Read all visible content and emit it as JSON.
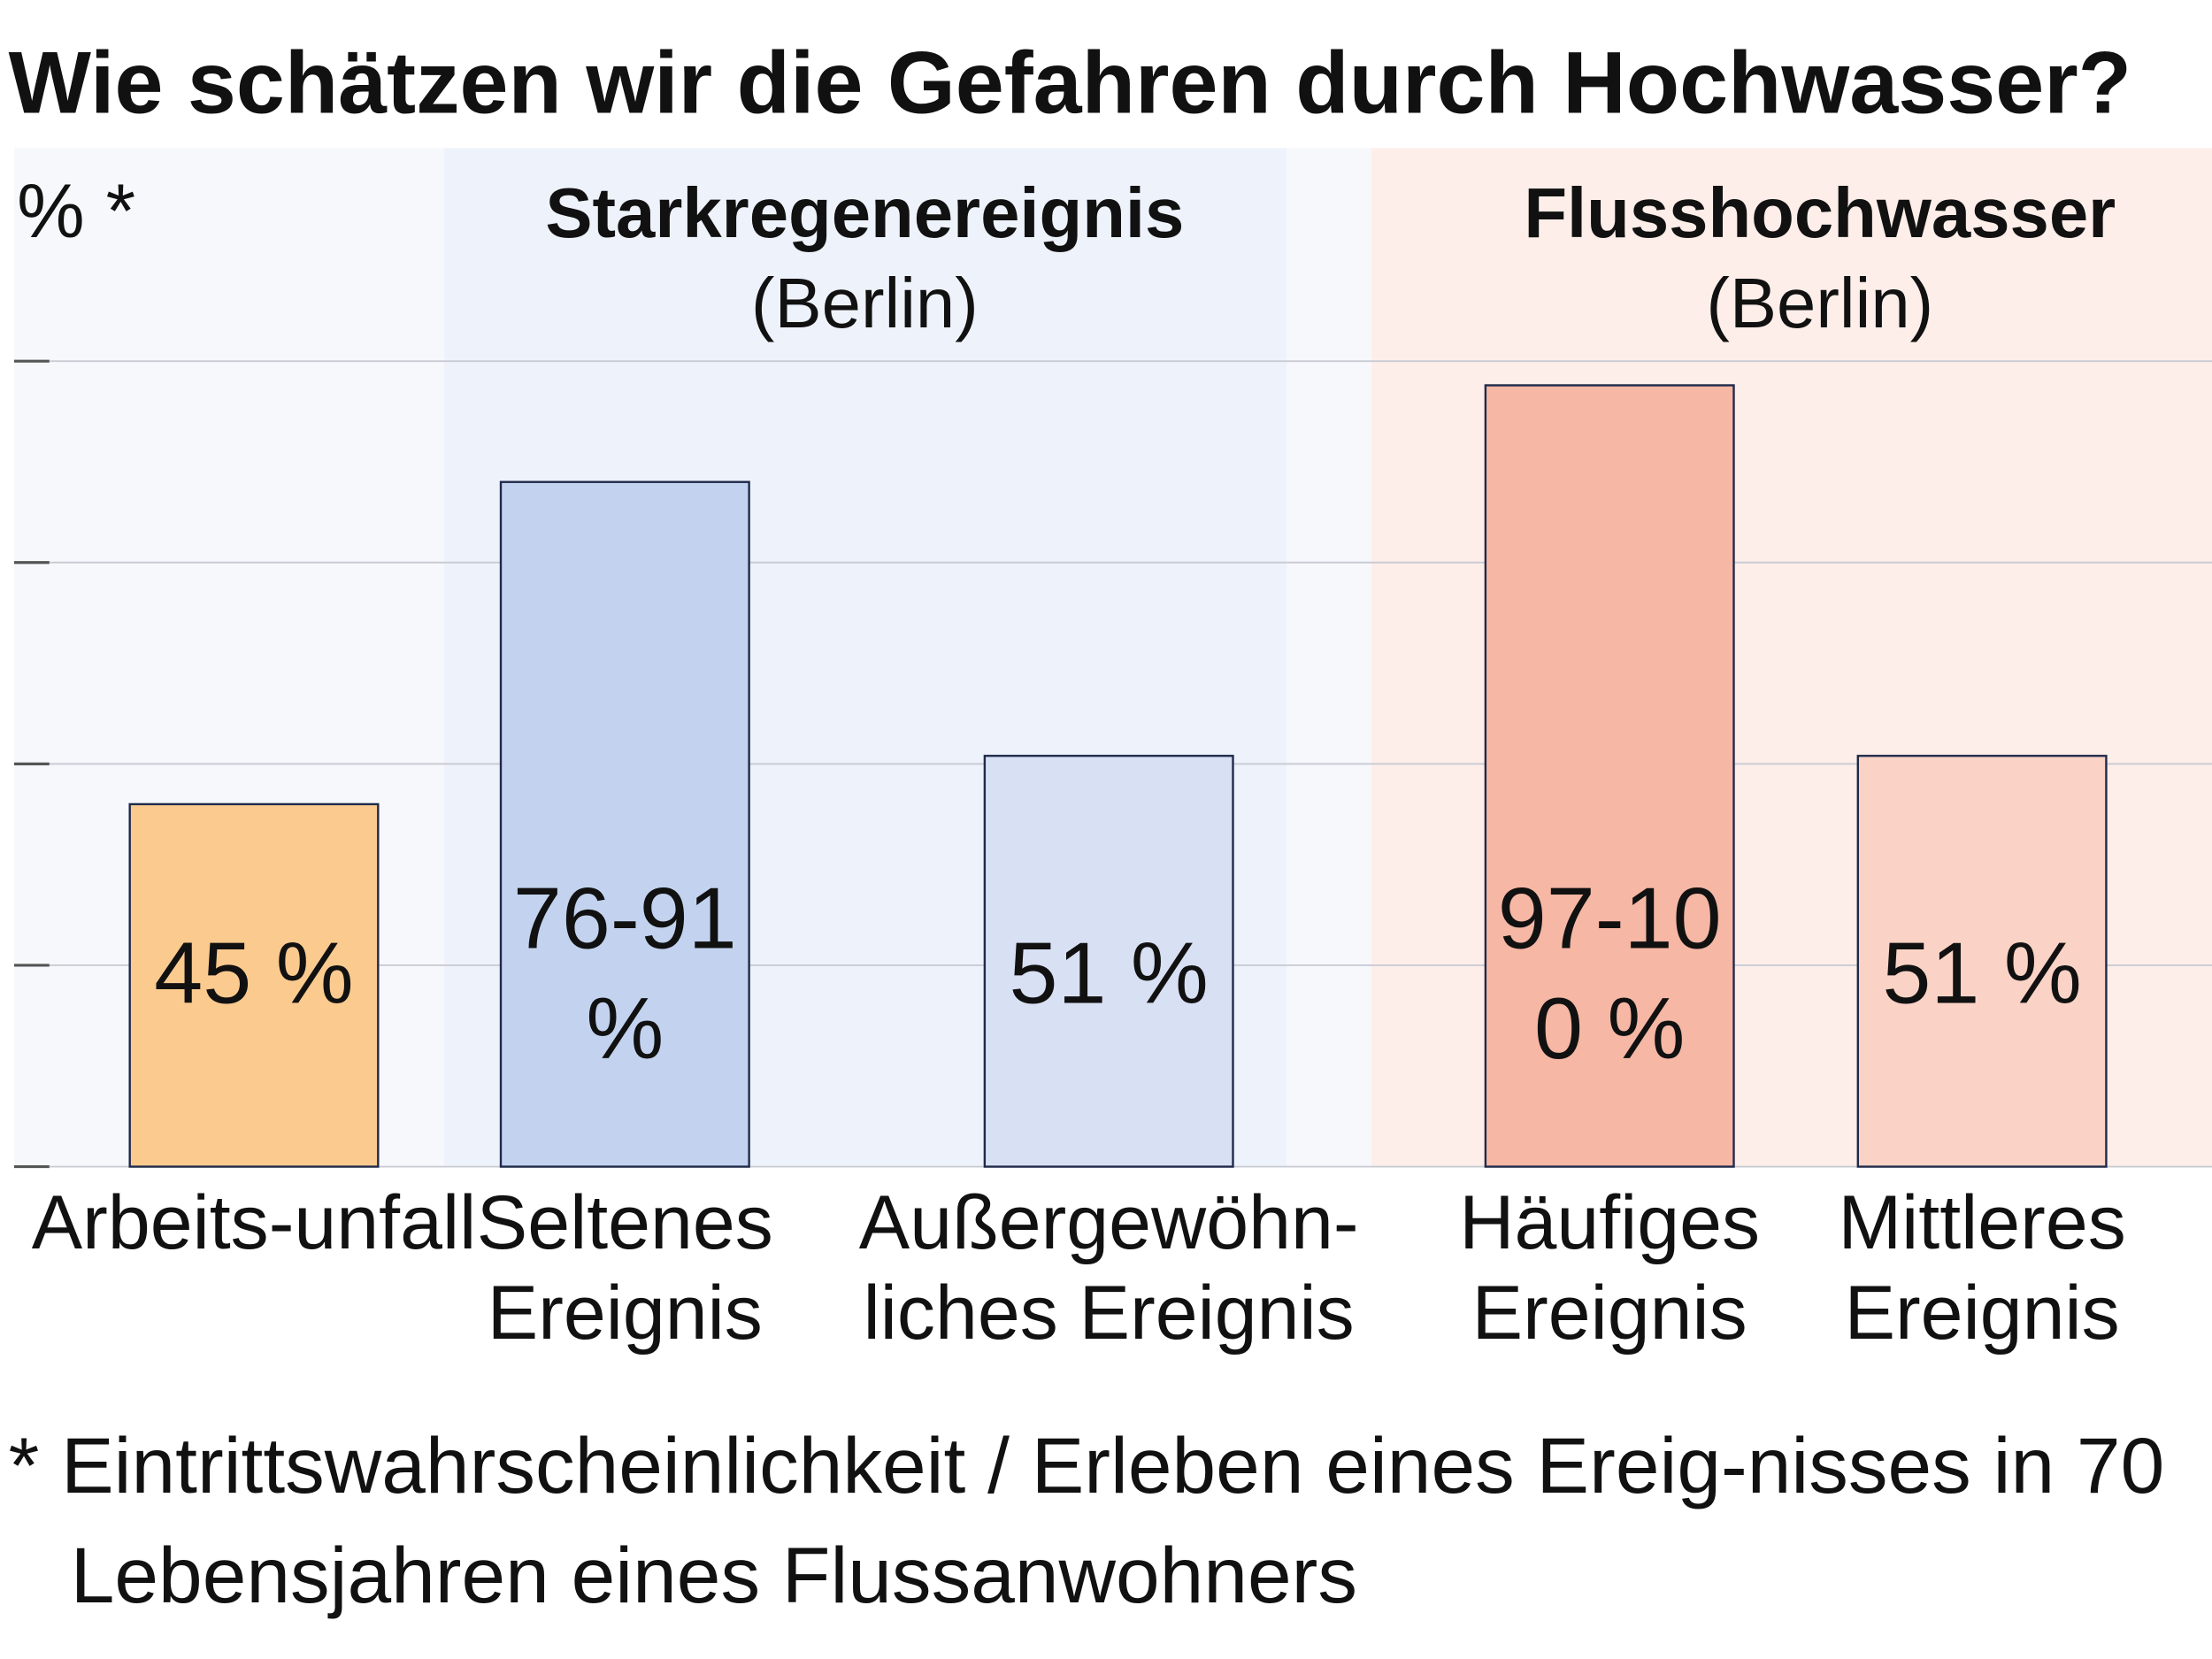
{
  "chart_data": {
    "type": "bar",
    "title": "Wie schätzen wir die Gefahren durch Hochwasser?",
    "y_label": "% *",
    "groups": [
      {
        "title": "Starkregenereignis",
        "subtitle": "(Berlin)"
      },
      {
        "title": "Flusshochwasser",
        "subtitle": "(Berlin)"
      }
    ],
    "categories": [
      "Arbeits-unfall",
      "Seltenes Ereignis",
      "Außergewöhn-liches Ereignis",
      "Häufiges Ereignis",
      "Mittleres Ereignis"
    ],
    "values": [
      45,
      85,
      51,
      97,
      51
    ],
    "value_labels": [
      "45 %",
      "76-91 %",
      "51 %",
      "97-100 %",
      "51 %"
    ],
    "colors": [
      "#fbca8f",
      "#c3d3ef",
      "#d8e0f3",
      "#f6b7a5",
      "#fad3c6"
    ],
    "ylim": [
      0,
      100
    ],
    "yticks": [
      0,
      25,
      50,
      75,
      100
    ],
    "grid": true,
    "footnote": "* Eintrittswahrscheinlichkeit / Erleben eines Ereig-nisses in 70 Lebensjahren eines Flussanwohners"
  }
}
